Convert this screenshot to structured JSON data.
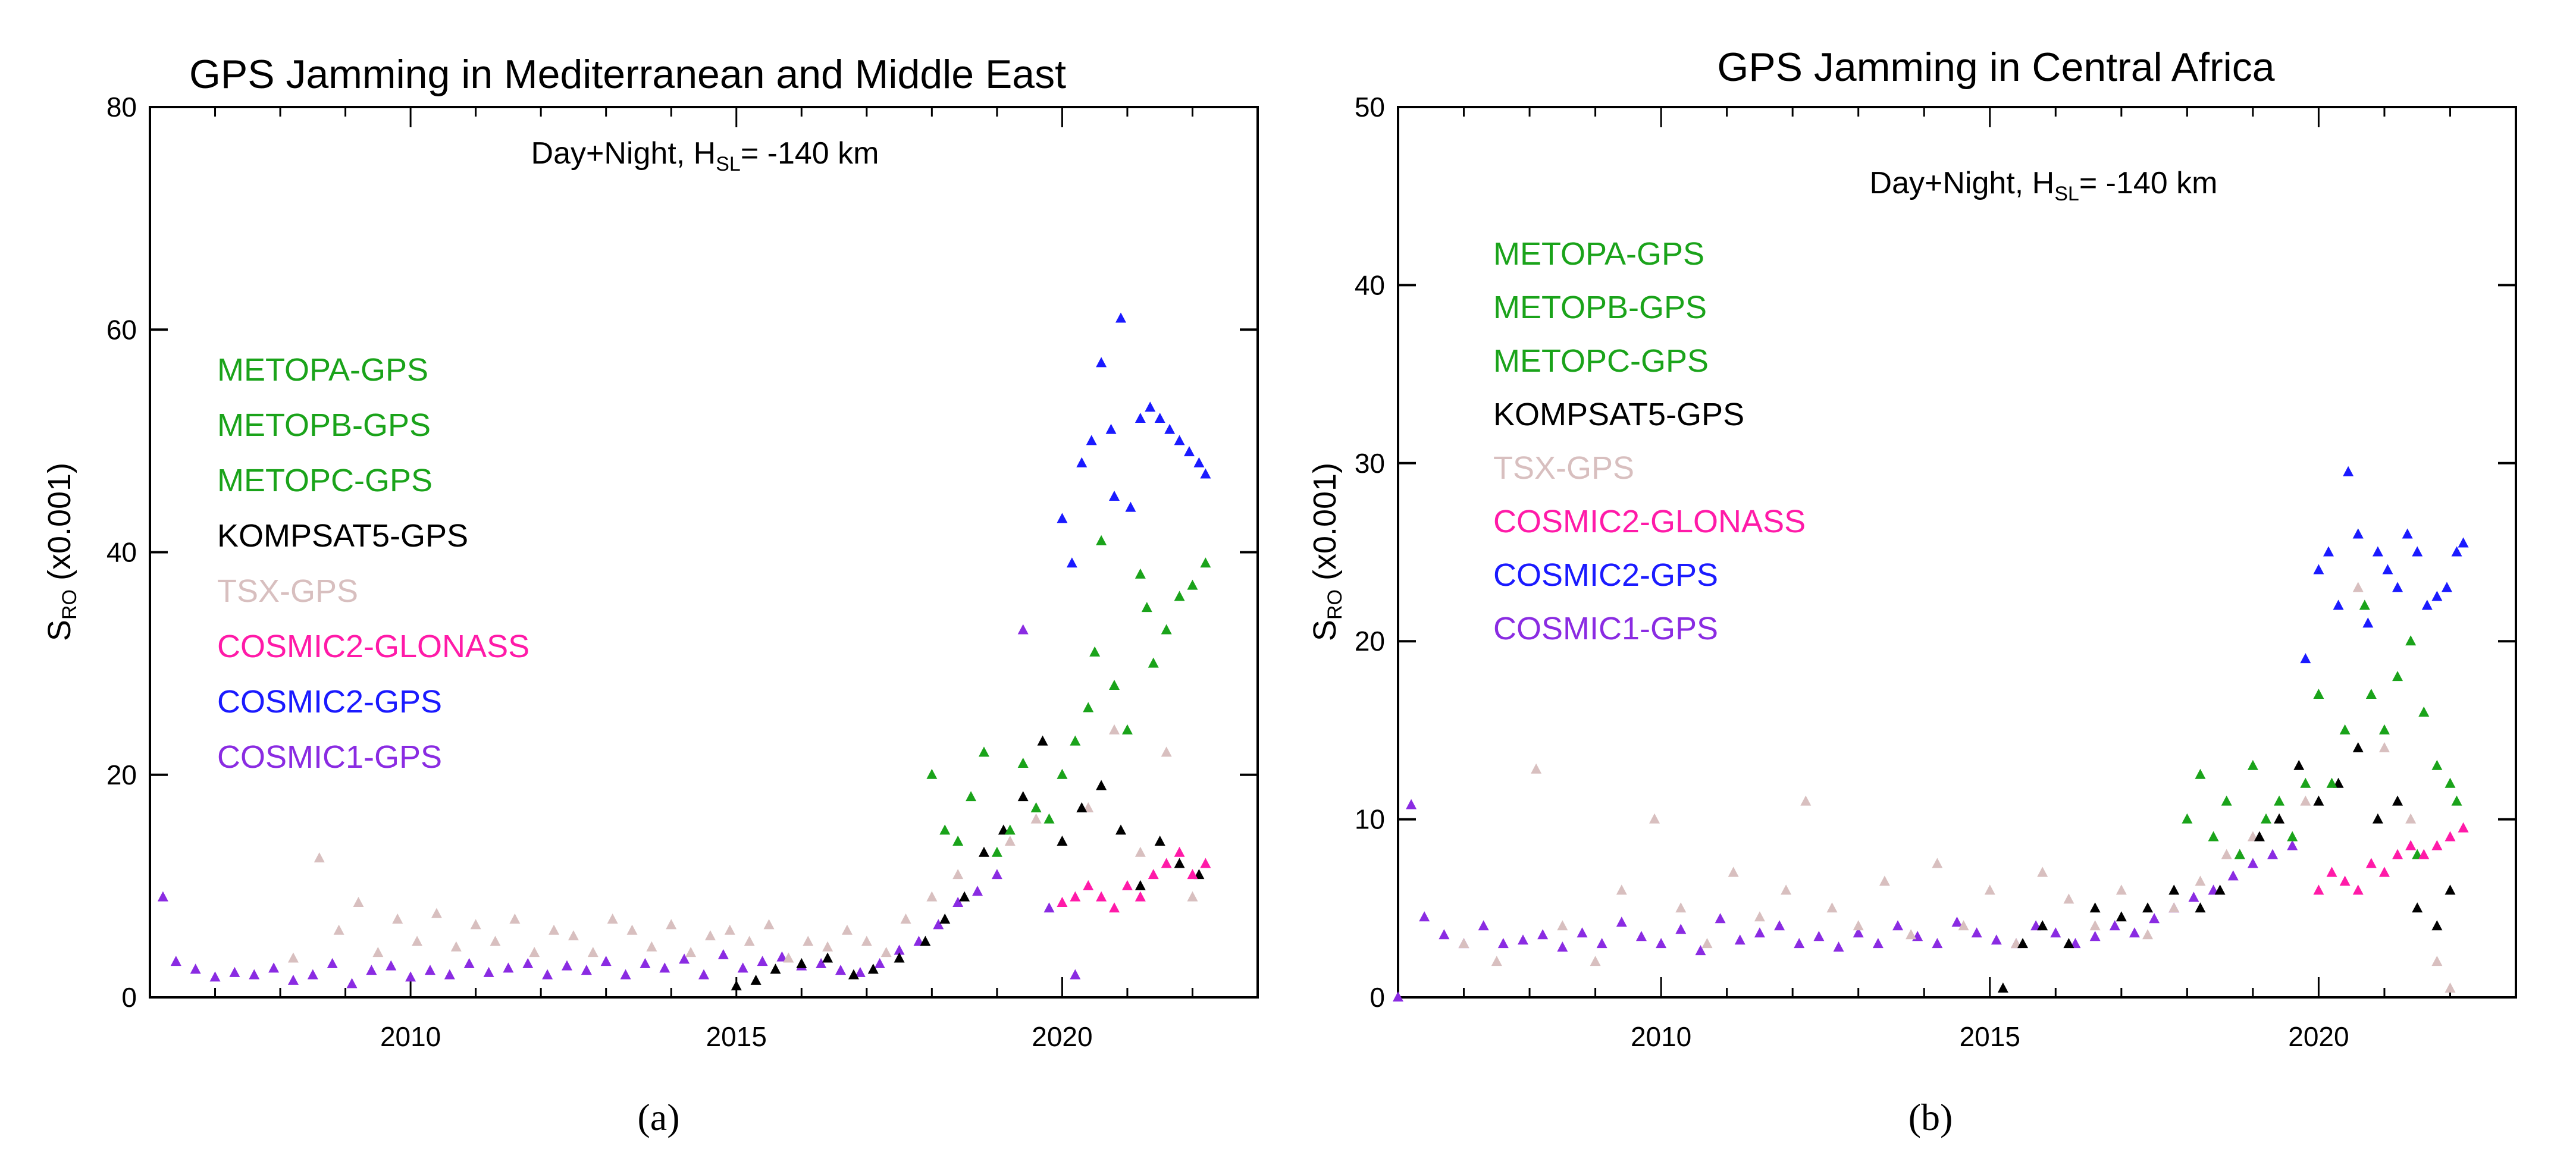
{
  "chart_data": [
    {
      "type": "scatter",
      "title": "GPS Jamming in Mediterranean and Middle East",
      "panel_label": "(a)",
      "ylabel_main": "S",
      "ylabel_sub": "RO",
      "ylabel_suffix": " (x0.001)",
      "annotation": {
        "prefix": "Day+Night, H",
        "sub": "SL",
        "suffix": "= -140 km"
      },
      "xlim": [
        2006,
        2023
      ],
      "ylim": [
        0,
        80
      ],
      "xticks": [
        "2010",
        "2015",
        "2020"
      ],
      "yticks": [
        "0",
        "20",
        "40",
        "60",
        "80"
      ],
      "legend": [
        {
          "name": "METOPA-GPS",
          "color": "#1aa31a"
        },
        {
          "name": "METOPB-GPS",
          "color": "#1aa31a"
        },
        {
          "name": "METOPC-GPS",
          "color": "#1aa31a"
        },
        {
          "name": "KOMPSAT5-GPS",
          "color": "#000000"
        },
        {
          "name": "TSX-GPS",
          "color": "#d8bfbf"
        },
        {
          "name": "COSMIC2-GLONASS",
          "color": "#ff1aa8"
        },
        {
          "name": "COSMIC2-GPS",
          "color": "#1a1aff"
        },
        {
          "name": "COSMIC1-GPS",
          "color": "#8a2be2"
        }
      ],
      "series": [
        {
          "name": "COSMIC1-GPS",
          "color": "#8a2be2",
          "x": [
            2006.2,
            2006.4,
            2006.7,
            2007.0,
            2007.3,
            2007.6,
            2007.9,
            2008.2,
            2008.5,
            2008.8,
            2009.1,
            2009.4,
            2009.7,
            2010.0,
            2010.3,
            2010.6,
            2010.9,
            2011.2,
            2011.5,
            2011.8,
            2012.1,
            2012.4,
            2012.7,
            2013.0,
            2013.3,
            2013.6,
            2013.9,
            2014.2,
            2014.5,
            2014.8,
            2015.1,
            2015.4,
            2015.7,
            2016.0,
            2016.3,
            2016.6,
            2016.9,
            2017.2,
            2017.5,
            2017.8,
            2018.1,
            2018.4,
            2018.7,
            2019.0,
            2019.4,
            2019.8,
            2020.2
          ],
          "y": [
            9.0,
            3.2,
            2.5,
            1.8,
            2.2,
            2.0,
            2.6,
            1.5,
            2.0,
            3.0,
            1.2,
            2.4,
            2.8,
            1.8,
            2.4,
            2.0,
            3.0,
            2.2,
            2.6,
            3.0,
            2.0,
            2.8,
            2.4,
            3.2,
            2.0,
            3.0,
            2.6,
            3.4,
            2.0,
            3.8,
            2.6,
            3.2,
            3.6,
            2.8,
            3.0,
            2.4,
            2.2,
            3.0,
            4.2,
            5.0,
            6.5,
            8.5,
            9.5,
            11.0,
            33.0,
            8.0,
            2.0
          ]
        },
        {
          "name": "TSX-GPS",
          "color": "#d8bfbf",
          "x": [
            2008.2,
            2008.6,
            2008.9,
            2009.2,
            2009.5,
            2009.8,
            2010.1,
            2010.4,
            2010.7,
            2011.0,
            2011.3,
            2011.6,
            2011.9,
            2012.2,
            2012.5,
            2012.8,
            2013.1,
            2013.4,
            2013.7,
            2014.0,
            2014.3,
            2014.6,
            2014.9,
            2015.2,
            2015.5,
            2015.8,
            2016.1,
            2016.4,
            2016.7,
            2017.0,
            2017.3,
            2017.6,
            2018.0,
            2018.4,
            2018.8,
            2019.2,
            2019.6,
            2020.0,
            2020.4,
            2020.8,
            2021.2,
            2021.6,
            2022.0
          ],
          "y": [
            3.5,
            12.5,
            6.0,
            8.5,
            4.0,
            7.0,
            5.0,
            7.5,
            4.5,
            6.5,
            5.0,
            7.0,
            4.0,
            6.0,
            5.5,
            4.0,
            7.0,
            6.0,
            4.5,
            6.5,
            4.0,
            5.5,
            6.0,
            5.0,
            6.5,
            3.5,
            5.0,
            4.5,
            6.0,
            5.0,
            4.0,
            7.0,
            9.0,
            11.0,
            13.0,
            14.0,
            16.0,
            20.0,
            17.0,
            24.0,
            13.0,
            22.0,
            9.0
          ]
        },
        {
          "name": "KOMPSAT5-GPS",
          "color": "#000000",
          "x": [
            2015.0,
            2015.3,
            2015.6,
            2016.0,
            2016.4,
            2016.8,
            2017.1,
            2017.5,
            2017.9,
            2018.2,
            2018.5,
            2018.8,
            2019.1,
            2019.4,
            2019.7,
            2020.0,
            2020.3,
            2020.6,
            2020.9,
            2021.2,
            2021.5,
            2021.8,
            2022.1
          ],
          "y": [
            1.0,
            1.5,
            2.5,
            3.0,
            3.5,
            2.0,
            2.5,
            3.5,
            5.0,
            7.0,
            9.0,
            13.0,
            15.0,
            18.0,
            23.0,
            14.0,
            17.0,
            19.0,
            15.0,
            10.0,
            14.0,
            12.0,
            11.0
          ]
        },
        {
          "name": "METOP-GPS",
          "color": "#1aa31a",
          "x": [
            2018.0,
            2018.2,
            2018.4,
            2018.6,
            2018.8,
            2019.0,
            2019.2,
            2019.4,
            2019.6,
            2019.8,
            2020.0,
            2020.2,
            2020.4,
            2020.6,
            2020.8,
            2021.0,
            2021.2,
            2021.4,
            2021.6,
            2021.8,
            2022.0,
            2022.2,
            2020.5,
            2021.3
          ],
          "y": [
            20.0,
            15.0,
            14.0,
            18.0,
            22.0,
            13.0,
            15.0,
            21.0,
            17.0,
            16.0,
            20.0,
            23.0,
            26.0,
            41.0,
            28.0,
            24.0,
            38.0,
            30.0,
            33.0,
            36.0,
            37.0,
            39.0,
            31.0,
            35.0
          ]
        },
        {
          "name": "COSMIC2-GLONASS",
          "color": "#ff1aa8",
          "x": [
            2020.0,
            2020.2,
            2020.4,
            2020.6,
            2020.8,
            2021.0,
            2021.2,
            2021.4,
            2021.6,
            2021.8,
            2022.0,
            2022.2
          ],
          "y": [
            8.5,
            9.0,
            10.0,
            9.0,
            8.0,
            10.0,
            9.0,
            11.0,
            12.0,
            13.0,
            11.0,
            12.0
          ]
        },
        {
          "name": "COSMIC2-GPS",
          "color": "#1a1aff",
          "x": [
            2020.0,
            2020.15,
            2020.3,
            2020.45,
            2020.6,
            2020.75,
            2020.9,
            2021.05,
            2021.2,
            2021.35,
            2021.5,
            2021.65,
            2021.8,
            2021.95,
            2022.1,
            2022.2,
            2020.8
          ],
          "y": [
            43.0,
            39.0,
            48.0,
            50.0,
            57.0,
            51.0,
            61.0,
            44.0,
            52.0,
            53.0,
            52.0,
            51.0,
            50.0,
            49.0,
            48.0,
            47.0,
            45.0
          ]
        }
      ]
    },
    {
      "type": "scatter",
      "title": "GPS Jamming in Central Africa",
      "panel_label": "(b)",
      "ylabel_main": "S",
      "ylabel_sub": "RO",
      "ylabel_suffix": " (x0.001)",
      "annotation": {
        "prefix": "Day+Night, H",
        "sub": "SL",
        "suffix": "= -140 km"
      },
      "xlim": [
        2006,
        2023
      ],
      "ylim": [
        0,
        50
      ],
      "xticks": [
        "2010",
        "2015",
        "2020"
      ],
      "yticks": [
        "0",
        "10",
        "20",
        "30",
        "40",
        "50"
      ],
      "legend": [
        {
          "name": "METOPA-GPS",
          "color": "#1aa31a"
        },
        {
          "name": "METOPB-GPS",
          "color": "#1aa31a"
        },
        {
          "name": "METOPC-GPS",
          "color": "#1aa31a"
        },
        {
          "name": "KOMPSAT5-GPS",
          "color": "#000000"
        },
        {
          "name": "TSX-GPS",
          "color": "#d8bfbf"
        },
        {
          "name": "COSMIC2-GLONASS",
          "color": "#ff1aa8"
        },
        {
          "name": "COSMIC2-GPS",
          "color": "#1a1aff"
        },
        {
          "name": "COSMIC1-GPS",
          "color": "#8a2be2"
        }
      ],
      "series": [
        {
          "name": "COSMIC1-GPS",
          "color": "#8a2be2",
          "x": [
            2006.0,
            2006.2,
            2006.4,
            2006.7,
            2007.0,
            2007.3,
            2007.6,
            2007.9,
            2008.2,
            2008.5,
            2008.8,
            2009.1,
            2009.4,
            2009.7,
            2010.0,
            2010.3,
            2010.6,
            2010.9,
            2011.2,
            2011.5,
            2011.8,
            2012.1,
            2012.4,
            2012.7,
            2013.0,
            2013.3,
            2013.6,
            2013.9,
            2014.2,
            2014.5,
            2014.8,
            2015.1,
            2015.4,
            2015.7,
            2016.0,
            2016.3,
            2016.6,
            2016.9,
            2017.2,
            2017.5,
            2017.8,
            2018.1,
            2018.4,
            2018.7,
            2019.0,
            2019.3,
            2019.6
          ],
          "y": [
            0.0,
            10.8,
            4.5,
            3.5,
            3.0,
            4.0,
            3.0,
            3.2,
            3.5,
            2.8,
            3.6,
            3.0,
            4.2,
            3.4,
            3.0,
            3.8,
            2.6,
            4.4,
            3.2,
            3.6,
            4.0,
            3.0,
            3.4,
            2.8,
            3.6,
            3.0,
            4.0,
            3.4,
            3.0,
            4.2,
            3.6,
            3.2,
            3.0,
            4.0,
            3.6,
            3.0,
            3.4,
            4.0,
            3.6,
            4.4,
            5.0,
            5.6,
            6.0,
            6.8,
            7.5,
            8.0,
            8.5
          ]
        },
        {
          "name": "TSX-GPS",
          "color": "#d8bfbf",
          "x": [
            2007.0,
            2007.5,
            2008.1,
            2008.5,
            2009.0,
            2009.4,
            2009.9,
            2010.3,
            2010.7,
            2011.1,
            2011.5,
            2011.9,
            2012.2,
            2012.6,
            2013.0,
            2013.4,
            2013.8,
            2014.2,
            2014.6,
            2015.0,
            2015.4,
            2015.8,
            2016.2,
            2016.6,
            2017.0,
            2017.4,
            2017.8,
            2018.2,
            2018.6,
            2019.0,
            2019.4,
            2019.8,
            2020.2,
            2020.6,
            2021.0,
            2021.4,
            2021.8,
            2022.0
          ],
          "y": [
            3.0,
            2.0,
            12.8,
            4.0,
            2.0,
            6.0,
            10.0,
            5.0,
            3.0,
            7.0,
            4.5,
            6.0,
            11.0,
            5.0,
            4.0,
            6.5,
            3.5,
            7.5,
            4.0,
            6.0,
            3.0,
            7.0,
            5.5,
            4.0,
            6.0,
            3.5,
            5.0,
            6.5,
            8.0,
            9.0,
            10.0,
            11.0,
            12.0,
            23.0,
            14.0,
            10.0,
            2.0,
            0.5
          ]
        },
        {
          "name": "KOMPSAT5-GPS",
          "color": "#000000",
          "x": [
            2015.2,
            2015.5,
            2015.8,
            2016.2,
            2016.6,
            2017.0,
            2017.4,
            2017.8,
            2018.2,
            2018.5,
            2018.8,
            2019.1,
            2019.4,
            2019.7,
            2020.0,
            2020.3,
            2020.6,
            2020.9,
            2021.2,
            2021.5,
            2021.8,
            2022.0
          ],
          "y": [
            0.5,
            3.0,
            4.0,
            3.0,
            5.0,
            4.5,
            5.0,
            6.0,
            5.0,
            6.0,
            8.0,
            9.0,
            10.0,
            13.0,
            11.0,
            12.0,
            14.0,
            10.0,
            11.0,
            5.0,
            4.0,
            6.0
          ]
        },
        {
          "name": "METOP-GPS",
          "color": "#1aa31a",
          "x": [
            2018.0,
            2018.2,
            2018.4,
            2018.6,
            2018.8,
            2019.0,
            2019.2,
            2019.4,
            2019.6,
            2019.8,
            2020.0,
            2020.2,
            2020.4,
            2020.6,
            2020.8,
            2021.0,
            2021.2,
            2021.4,
            2021.6,
            2021.8,
            2022.0,
            2022.1,
            2020.7,
            2021.5
          ],
          "y": [
            10.0,
            12.5,
            9.0,
            11.0,
            8.0,
            13.0,
            10.0,
            11.0,
            9.0,
            12.0,
            17.0,
            12.0,
            15.0,
            26.0,
            17.0,
            15.0,
            18.0,
            20.0,
            16.0,
            13.0,
            12.0,
            11.0,
            22.0,
            8.0
          ]
        },
        {
          "name": "COSMIC2-GLONASS",
          "color": "#ff1aa8",
          "x": [
            2020.0,
            2020.2,
            2020.4,
            2020.6,
            2020.8,
            2021.0,
            2021.2,
            2021.4,
            2021.6,
            2021.8,
            2022.0,
            2022.2
          ],
          "y": [
            6.0,
            7.0,
            6.5,
            6.0,
            7.5,
            7.0,
            8.0,
            8.5,
            8.0,
            8.5,
            9.0,
            9.5
          ]
        },
        {
          "name": "COSMIC2-GPS",
          "color": "#1a1aff",
          "x": [
            2019.8,
            2020.0,
            2020.15,
            2020.3,
            2020.45,
            2020.6,
            2020.75,
            2020.9,
            2021.05,
            2021.2,
            2021.35,
            2021.5,
            2021.65,
            2021.8,
            2021.95,
            2022.1,
            2022.2
          ],
          "y": [
            19.0,
            24.0,
            25.0,
            22.0,
            29.5,
            26.0,
            21.0,
            25.0,
            24.0,
            23.0,
            26.0,
            25.0,
            22.0,
            22.5,
            23.0,
            25.0,
            25.5
          ]
        }
      ]
    }
  ]
}
